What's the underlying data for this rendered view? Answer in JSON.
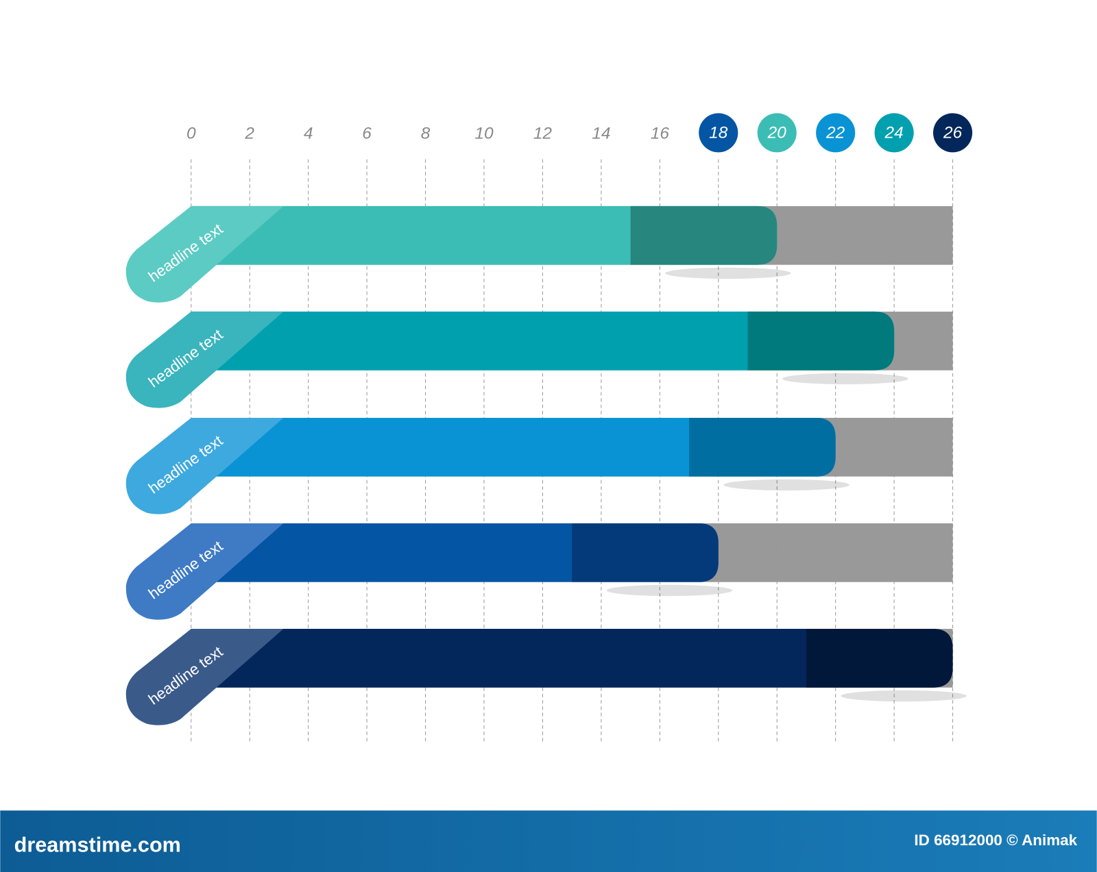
{
  "chart_data": {
    "type": "bar",
    "orientation": "horizontal",
    "categories": [
      "headline text",
      "headline text",
      "headline text",
      "headline text",
      "headline text"
    ],
    "values": [
      20,
      24,
      22,
      18,
      26
    ],
    "colors": [
      "#3bbdb5",
      "#00a0ae",
      "#0993d4",
      "#0455a4",
      "#03275a"
    ],
    "end_colors": [
      "#27877e",
      "#007a7c",
      "#006ea0",
      "#043a7a",
      "#01183a"
    ],
    "tab_colors": [
      "#5ccbc4",
      "#3ab4bd",
      "#3ea9de",
      "#3f7bc4",
      "#3a5a8a"
    ],
    "track_color": "#999999",
    "xlim": [
      0,
      26
    ],
    "xticks": [
      0,
      2,
      4,
      6,
      8,
      10,
      12,
      14,
      16,
      18,
      20,
      22,
      24,
      26
    ],
    "grid": true
  },
  "footer": {
    "site": "dreamstime.com",
    "credit": "ID 66912000 © Animak"
  }
}
